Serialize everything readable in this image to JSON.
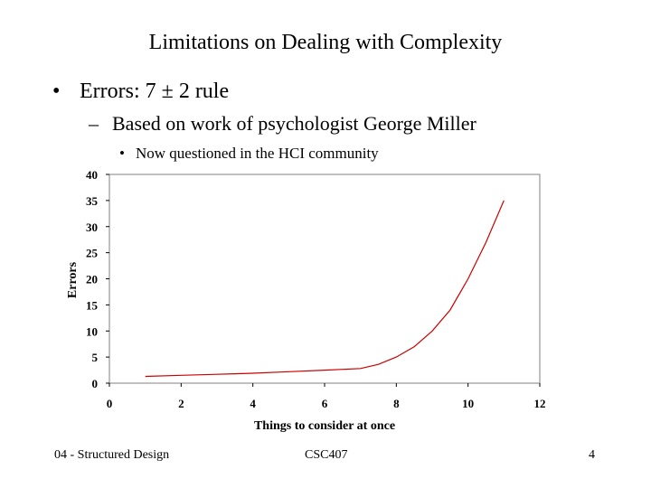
{
  "slide": {
    "title": "Limitations on Dealing with Complexity",
    "bullet1": "Errors: 7 ± 2 rule",
    "bullet2": "Based on work of psychologist George Miller",
    "bullet3": "Now questioned in the HCI community",
    "bullet_glyph": "•",
    "dash_glyph": "–"
  },
  "footer": {
    "left": "04 - Structured Design",
    "center": "CSC407",
    "right": "4"
  },
  "chart_data": {
    "type": "line",
    "title": "",
    "xlabel": "Things to consider at once",
    "ylabel": "Errors",
    "xlim": [
      0,
      12
    ],
    "ylim": [
      0,
      40
    ],
    "x_ticks": [
      0,
      2,
      4,
      6,
      8,
      10,
      12
    ],
    "y_ticks": [
      0,
      5,
      10,
      15,
      20,
      25,
      30,
      35,
      40
    ],
    "grid": false,
    "legend": "none",
    "line_color": "#cc0000",
    "series": [
      {
        "x": [
          1,
          2,
          3,
          3.5,
          4,
          5,
          6,
          7,
          7.5,
          8,
          8.5,
          9,
          9.5,
          10,
          10.5,
          11
        ],
        "y": [
          1.3,
          1.5,
          1.7,
          1.8,
          1.9,
          2.2,
          2.5,
          2.8,
          3.6,
          5,
          7,
          10,
          14,
          20,
          27,
          35
        ]
      }
    ]
  }
}
